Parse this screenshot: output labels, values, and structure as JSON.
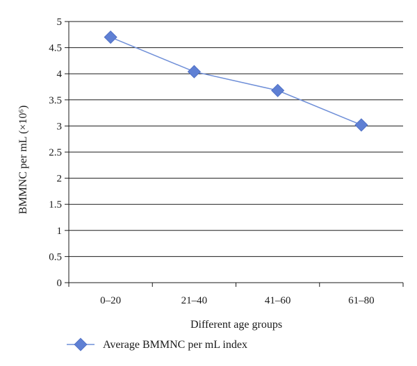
{
  "chart_data": {
    "type": "line",
    "categories": [
      "0–20",
      "21–40",
      "41–60",
      "61–80"
    ],
    "series": [
      {
        "name": "Average BMMNC per mL index",
        "values": [
          4.7,
          4.04,
          3.68,
          3.02
        ]
      }
    ],
    "xlabel": "Different age groups",
    "ylabel": "BMMNC per mL (×10⁶)",
    "ylim": [
      0,
      5
    ],
    "yticks": [
      "0",
      "0.5",
      "1",
      "1.5",
      "2",
      "2.5",
      "3",
      "3.5",
      "4",
      "4.5",
      "5"
    ],
    "grid": "horizontal",
    "legend": "bottom",
    "colors": {
      "series": "#6f8fd8",
      "marker": "#5f80d4",
      "grid": "#1a1a1a"
    }
  }
}
